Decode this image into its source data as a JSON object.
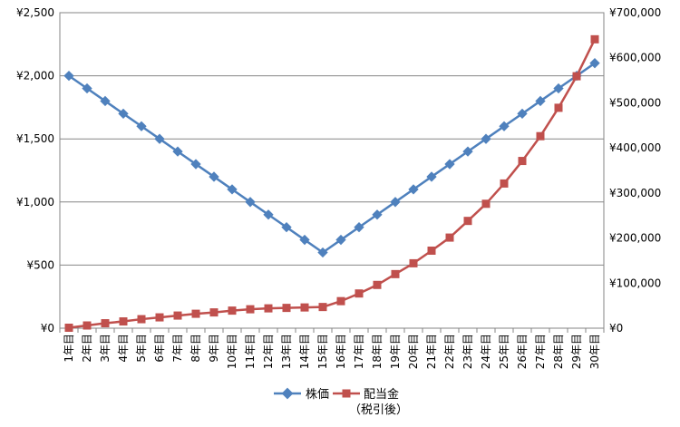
{
  "chart_data": {
    "type": "line",
    "categories": [
      "1年目",
      "2年目",
      "3年目",
      "4年目",
      "5年目",
      "6年目",
      "7年目",
      "8年目",
      "9年目",
      "10年目",
      "11年目",
      "12年目",
      "13年目",
      "14年目",
      "15年目",
      "16年目",
      "17年目",
      "18年目",
      "19年目",
      "20年目",
      "21年目",
      "22年目",
      "23年目",
      "24年目",
      "25年目",
      "26年目",
      "27年目",
      "28年目",
      "29年目",
      "30年目"
    ],
    "left_axis": {
      "min": 0,
      "max": 2500,
      "step": 500,
      "tick_labels": [
        "¥0",
        "¥500",
        "¥1,000",
        "¥1,500",
        "¥2,000",
        "¥2,500"
      ]
    },
    "right_axis": {
      "min": 0,
      "max": 700000,
      "step": 100000,
      "tick_labels": [
        "¥0",
        "¥100,000",
        "¥200,000",
        "¥300,000",
        "¥400,000",
        "¥500,000",
        "¥600,000",
        "¥700,000"
      ]
    },
    "grid": "horizontal",
    "legend_position": "bottom",
    "series": [
      {
        "name": "株価",
        "axis": "left",
        "color": "#4F81BD",
        "marker": "diamond",
        "values": [
          2000,
          1900,
          1800,
          1700,
          1600,
          1500,
          1400,
          1300,
          1200,
          1100,
          1000,
          900,
          800,
          700,
          600,
          700,
          800,
          900,
          1000,
          1100,
          1200,
          1300,
          1400,
          1500,
          1600,
          1700,
          1800,
          1900,
          2000,
          2100
        ]
      },
      {
        "name": "配当金",
        "name_sub": "（税引後）",
        "axis": "right",
        "color": "#C0504D",
        "marker": "square",
        "values": [
          1000,
          6000,
          11000,
          15000,
          20000,
          24000,
          28000,
          32000,
          35000,
          39000,
          42000,
          44000,
          45000,
          46000,
          47000,
          60000,
          77000,
          96000,
          120000,
          144000,
          172000,
          201000,
          238000,
          276000,
          321000,
          371000,
          426000,
          489000,
          559000,
          641000
        ]
      }
    ]
  }
}
